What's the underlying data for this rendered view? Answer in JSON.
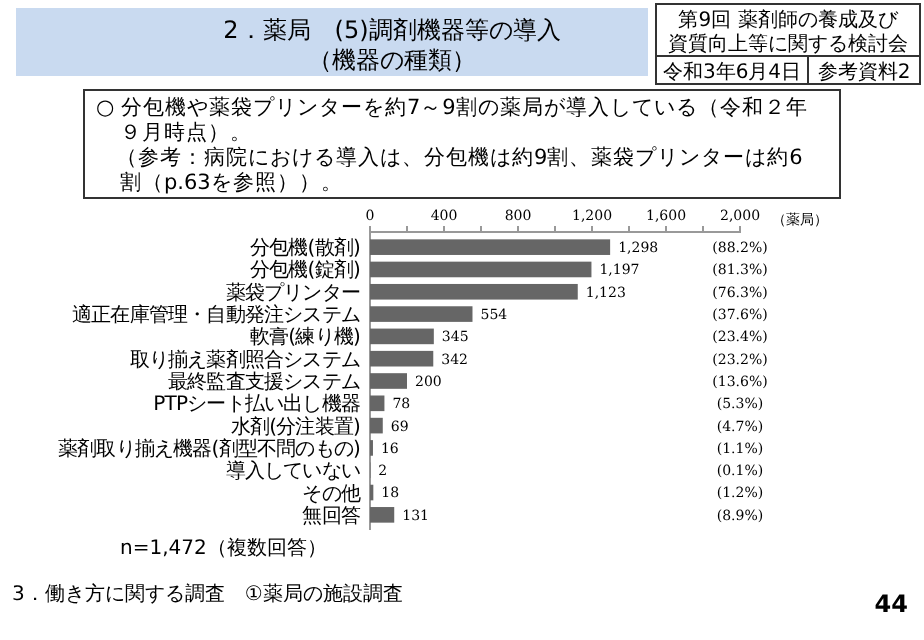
{
  "chart_data": {
    "type": "bar",
    "orientation": "horizontal",
    "title": "2．薬局　(5)調剤機器等の導入",
    "subtitle": "（機器の種類）",
    "xlabel": "（薬局）",
    "categories": [
      "分包機(散剤)",
      "分包機(錠剤)",
      "薬袋プリンター",
      "適正在庫管理・自動発注システム",
      "軟膏(練り機)",
      "取り揃え薬剤照合システム",
      "最終監査支援システム",
      "PTPシート払い出し機器",
      "水剤(分注装置)",
      "薬剤取り揃え機器(剤型不問のもの)",
      "導入していない",
      "その他",
      "無回答"
    ],
    "values": [
      1298,
      1197,
      1123,
      554,
      345,
      342,
      200,
      78,
      69,
      16,
      2,
      18,
      131
    ],
    "value_labels": [
      "1,298",
      "1,197",
      "1,123",
      "554",
      "345",
      "342",
      "200",
      "78",
      "69",
      "16",
      "2",
      "18",
      "131"
    ],
    "color": "#666666",
    "xlim": [
      0,
      2000
    ],
    "xticks": [
      0,
      {
        "value": 200,
        "label": null
      },
      400,
      {
        "value": 600,
        "label": null
      },
      {
        "value": 800,
        "label": "800"
      },
      {
        "value": 1000,
        "label": null
      },
      {
        "value": 1200,
        "label": "1,200"
      },
      {
        "value": 1400,
        "label": null
      },
      {
        "value": 1600,
        "label": "1,600"
      },
      {
        "value": 1800,
        "label": null
      },
      {
        "value": 2000,
        "label": "2,000"
      }
    ],
    "annotations": [
      "(88.2%)",
      "(81.3%)",
      "(76.3%)",
      "(37.6%)",
      "(23.4%)",
      "(23.2%)",
      "(13.6%)",
      "(5.3%)",
      "(4.7%)",
      "(1.1%)",
      "(0.1%)",
      "(1.2%)",
      "(8.9%)",
      "第9回 薬剤師の養成及び",
      "資質向上等に関する検討会",
      "令和3年6月4日",
      "参考資料2",
      "○ 分包機や薬袋プリンターを約7～9割の薬局が導入している（令和２年",
      "９月時点）。",
      "（参考：病院における導入は、分包機は約9割、薬袋プリンターは約6",
      "割（p.63を参照））。",
      "n=1,472（複数回答）",
      "3．働き方に関する調査　①薬局の施設調査",
      "44"
    ]
  }
}
